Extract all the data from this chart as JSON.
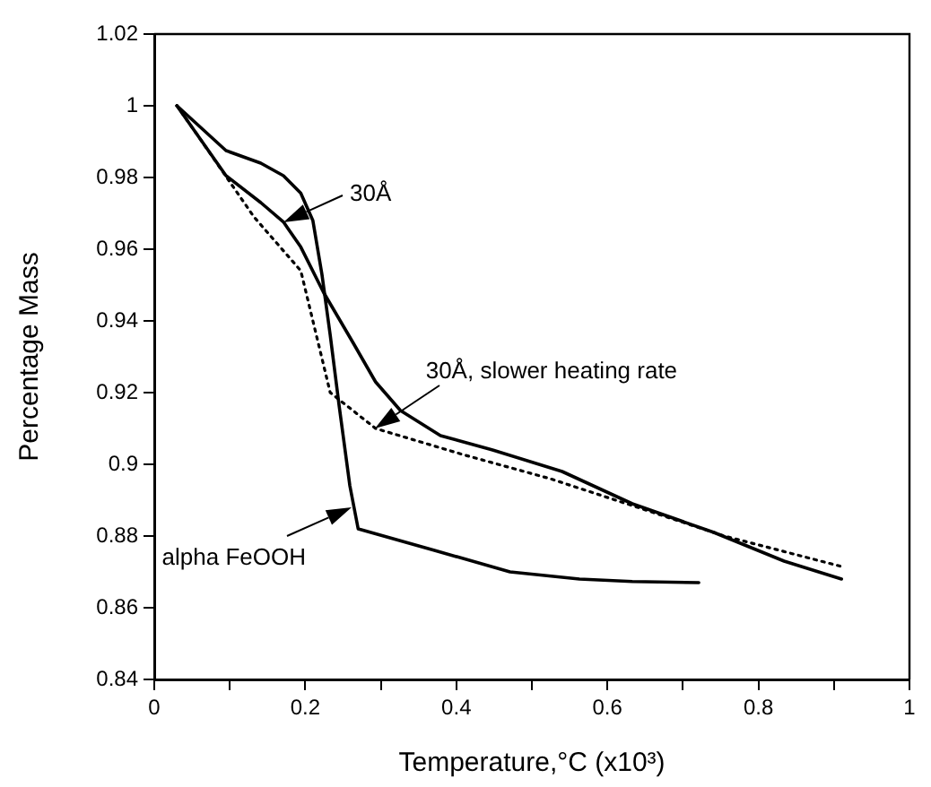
{
  "chart_data": {
    "type": "line",
    "xlabel": "Temperature,°C (x10³)",
    "ylabel": "Percentage Mass",
    "xlim": [
      0,
      1
    ],
    "ylim": [
      0.84,
      1.02
    ],
    "xticks": [
      0,
      {
        "value": 0.1,
        "label": null
      },
      0.2,
      {
        "value": 0.3,
        "label": null
      },
      0.4,
      {
        "value": 0.5,
        "label": null
      },
      0.6,
      {
        "value": 0.7,
        "label": null
      },
      0.8,
      {
        "value": 0.9,
        "label": null
      },
      1
    ],
    "yticks": [
      0.84,
      0.86,
      0.88,
      0.9,
      0.92,
      0.94,
      0.96,
      0.98,
      1,
      1.02
    ],
    "grid": false,
    "legend": false,
    "marker": "none",
    "series": [
      {
        "color": "#000000",
        "line_style": "solid",
        "x": [
          0.03,
          0.095,
          0.141,
          0.171,
          0.194,
          0.21,
          0.222,
          0.233,
          0.245,
          0.259,
          0.27,
          0.371,
          0.471,
          0.563,
          0.633,
          0.721
        ],
        "values": [
          1.0,
          0.9875,
          0.984,
          0.9805,
          0.9756,
          0.968,
          0.953,
          0.936,
          0.916,
          0.894,
          0.882,
          0.876,
          0.87,
          0.868,
          0.8673,
          0.867
        ]
      },
      {
        "color": "#000000",
        "line_style": "solid",
        "x": [
          0.03,
          0.095,
          0.141,
          0.171,
          0.194,
          0.224,
          0.263,
          0.293,
          0.326,
          0.379,
          0.448,
          0.54,
          0.633,
          0.741,
          0.834,
          0.91
        ],
        "values": [
          1.0,
          0.9805,
          0.973,
          0.9676,
          0.9606,
          0.948,
          0.934,
          0.923,
          0.915,
          0.908,
          0.904,
          0.898,
          0.889,
          0.881,
          0.873,
          0.868
        ]
      },
      {
        "color": "#000000",
        "line_style": "dotted",
        "x": [
          0.03,
          0.055,
          0.132,
          0.194,
          0.233,
          0.293,
          0.409,
          0.524,
          0.64,
          0.755,
          0.91
        ],
        "values": [
          1.0,
          0.9925,
          0.969,
          0.954,
          0.92,
          0.91,
          0.9027,
          0.896,
          0.888,
          0.88,
          0.8715
        ]
      }
    ],
    "annotations": [
      {
        "text": "30Å",
        "x": 0.171,
        "y": 0.9676
      },
      {
        "text": "30Å, slower heating rate",
        "x": 0.293,
        "y": 0.91
      },
      {
        "text": "alpha FeOOH",
        "x": 0.262,
        "y": 0.888
      }
    ]
  }
}
